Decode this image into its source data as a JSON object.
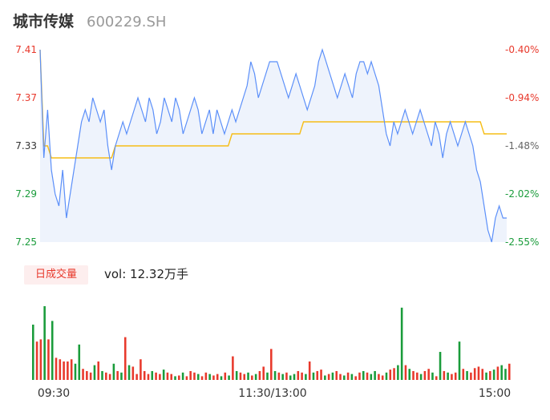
{
  "header": {
    "name": "城市传媒",
    "code": "600229.SH"
  },
  "volume_tab": {
    "label": "日成交量",
    "vol_label": "vol: 12.32万手"
  },
  "colors": {
    "price_line": "#5b8ff9",
    "avg_line": "#f6bd16",
    "up": "#e8392c",
    "down": "#1a9c3b",
    "area": "#eef3fc",
    "axis_text": "#333333"
  },
  "chart_data": {
    "type": "line",
    "price_axis": {
      "min": 7.25,
      "max": 7.41,
      "ticks": [
        "7.41",
        "7.37",
        "7.33",
        "7.29",
        "7.25"
      ]
    },
    "pct_axis": {
      "ticks": [
        "-0.40%",
        "-0.94%",
        "-1.48%",
        "-2.02%",
        "-2.55%"
      ]
    },
    "x_ticks": [
      "09:30",
      "11:30/13:00",
      "15:00"
    ],
    "price": [
      7.41,
      7.32,
      7.36,
      7.31,
      7.29,
      7.28,
      7.31,
      7.27,
      7.29,
      7.31,
      7.33,
      7.35,
      7.36,
      7.35,
      7.37,
      7.36,
      7.35,
      7.36,
      7.33,
      7.31,
      7.33,
      7.34,
      7.35,
      7.34,
      7.35,
      7.36,
      7.37,
      7.36,
      7.35,
      7.37,
      7.36,
      7.34,
      7.35,
      7.37,
      7.36,
      7.35,
      7.37,
      7.36,
      7.34,
      7.35,
      7.36,
      7.37,
      7.36,
      7.34,
      7.35,
      7.36,
      7.34,
      7.36,
      7.35,
      7.34,
      7.35,
      7.36,
      7.35,
      7.36,
      7.37,
      7.38,
      7.4,
      7.39,
      7.37,
      7.38,
      7.39,
      7.4,
      7.4,
      7.4,
      7.39,
      7.38,
      7.37,
      7.38,
      7.39,
      7.38,
      7.37,
      7.36,
      7.37,
      7.38,
      7.4,
      7.41,
      7.4,
      7.39,
      7.38,
      7.37,
      7.38,
      7.39,
      7.38,
      7.37,
      7.39,
      7.4,
      7.4,
      7.39,
      7.4,
      7.39,
      7.38,
      7.36,
      7.34,
      7.33,
      7.35,
      7.34,
      7.35,
      7.36,
      7.35,
      7.34,
      7.35,
      7.36,
      7.35,
      7.34,
      7.33,
      7.35,
      7.34,
      7.32,
      7.34,
      7.35,
      7.34,
      7.33,
      7.34,
      7.35,
      7.34,
      7.33,
      7.31,
      7.3,
      7.28,
      7.26,
      7.25,
      7.27,
      7.28,
      7.27,
      7.27
    ],
    "avg": [
      7.41,
      7.33,
      7.33,
      7.32,
      7.32,
      7.32,
      7.32,
      7.32,
      7.32,
      7.32,
      7.32,
      7.32,
      7.32,
      7.32,
      7.32,
      7.32,
      7.32,
      7.32,
      7.32,
      7.32,
      7.33,
      7.33,
      7.33,
      7.33,
      7.33,
      7.33,
      7.33,
      7.33,
      7.33,
      7.33,
      7.33,
      7.33,
      7.33,
      7.33,
      7.33,
      7.33,
      7.33,
      7.33,
      7.33,
      7.33,
      7.33,
      7.33,
      7.33,
      7.33,
      7.33,
      7.33,
      7.33,
      7.33,
      7.33,
      7.33,
      7.33,
      7.34,
      7.34,
      7.34,
      7.34,
      7.34,
      7.34,
      7.34,
      7.34,
      7.34,
      7.34,
      7.34,
      7.34,
      7.34,
      7.34,
      7.34,
      7.34,
      7.34,
      7.34,
      7.34,
      7.35,
      7.35,
      7.35,
      7.35,
      7.35,
      7.35,
      7.35,
      7.35,
      7.35,
      7.35,
      7.35,
      7.35,
      7.35,
      7.35,
      7.35,
      7.35,
      7.35,
      7.35,
      7.35,
      7.35,
      7.35,
      7.35,
      7.35,
      7.35,
      7.35,
      7.35,
      7.35,
      7.35,
      7.35,
      7.35,
      7.35,
      7.35,
      7.35,
      7.35,
      7.35,
      7.35,
      7.35,
      7.35,
      7.35,
      7.35,
      7.35,
      7.35,
      7.35,
      7.35,
      7.35,
      7.35,
      7.35,
      7.35,
      7.34,
      7.34,
      7.34,
      7.34,
      7.34,
      7.34,
      7.34
    ],
    "volume": {
      "values": [
        0.75,
        0.52,
        0.55,
        1.0,
        0.55,
        0.8,
        0.3,
        0.28,
        0.25,
        0.25,
        0.28,
        0.22,
        0.48,
        0.15,
        0.12,
        0.1,
        0.2,
        0.25,
        0.12,
        0.1,
        0.08,
        0.22,
        0.12,
        0.1,
        0.58,
        0.2,
        0.18,
        0.08,
        0.28,
        0.12,
        0.08,
        0.12,
        0.1,
        0.08,
        0.14,
        0.1,
        0.08,
        0.05,
        0.06,
        0.1,
        0.05,
        0.12,
        0.1,
        0.08,
        0.05,
        0.1,
        0.08,
        0.06,
        0.08,
        0.05,
        0.1,
        0.06,
        0.32,
        0.12,
        0.1,
        0.08,
        0.1,
        0.06,
        0.08,
        0.12,
        0.18,
        0.1,
        0.42,
        0.12,
        0.1,
        0.08,
        0.1,
        0.06,
        0.08,
        0.12,
        0.1,
        0.08,
        0.25,
        0.1,
        0.12,
        0.14,
        0.06,
        0.08,
        0.1,
        0.12,
        0.08,
        0.06,
        0.1,
        0.08,
        0.05,
        0.1,
        0.12,
        0.1,
        0.08,
        0.12,
        0.08,
        0.06,
        0.1,
        0.14,
        0.16,
        0.2,
        0.98,
        0.2,
        0.15,
        0.12,
        0.1,
        0.08,
        0.12,
        0.15,
        0.1,
        0.05,
        0.38,
        0.12,
        0.1,
        0.08,
        0.1,
        0.52,
        0.15,
        0.12,
        0.1,
        0.16,
        0.18,
        0.15,
        0.1,
        0.12,
        0.14,
        0.18,
        0.2,
        0.15,
        0.22
      ],
      "up": [
        0,
        1,
        1,
        0,
        1,
        0,
        1,
        1,
        1,
        1,
        1,
        0,
        0,
        1,
        1,
        1,
        0,
        1,
        0,
        1,
        1,
        0,
        1,
        0,
        1,
        0,
        1,
        1,
        1,
        1,
        1,
        0,
        1,
        1,
        0,
        1,
        1,
        0,
        1,
        0,
        1,
        1,
        1,
        0,
        1,
        1,
        0,
        1,
        1,
        0,
        1,
        0,
        1,
        0,
        1,
        1,
        0,
        1,
        0,
        1,
        1,
        0,
        1,
        0,
        1,
        0,
        1,
        0,
        0,
        1,
        1,
        0,
        1,
        0,
        1,
        1,
        0,
        1,
        0,
        1,
        1,
        0,
        1,
        0,
        1,
        1,
        0,
        1,
        0,
        0,
        1,
        1,
        0,
        1,
        1,
        0,
        0,
        1,
        0,
        1,
        1,
        0,
        1,
        1,
        0,
        1,
        0,
        1,
        0,
        1,
        1,
        0,
        1,
        0,
        1,
        1,
        1,
        1,
        0,
        1,
        0,
        1,
        0,
        0,
        1
      ]
    }
  }
}
